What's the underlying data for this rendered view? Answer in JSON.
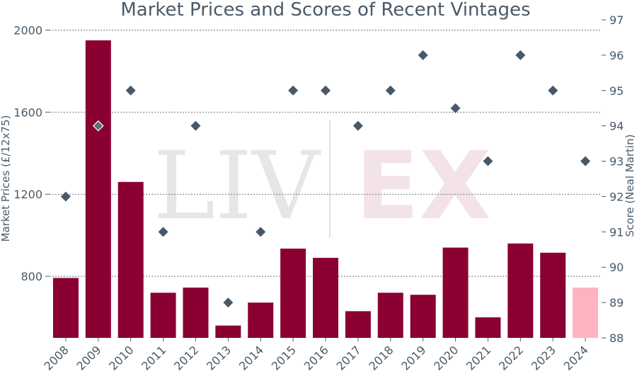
{
  "chart_data": {
    "type": "bar",
    "title": "Market Prices and Scores of Recent Vintages",
    "ylabel": "Market Prices (£/12x75)",
    "y2label": "Score (Neal Martin)",
    "ylim": [
      500,
      2050
    ],
    "y2lim": [
      88,
      97
    ],
    "yticks": [
      "800",
      "1200",
      "1600",
      "2000"
    ],
    "y2ticks": [
      "88",
      "89",
      "90",
      "91",
      "92",
      "93",
      "94",
      "95",
      "96",
      "97"
    ],
    "grid": true,
    "categories": [
      "2008",
      "2009",
      "2010",
      "2011",
      "2012",
      "2013",
      "2014",
      "2015",
      "2016",
      "2017",
      "2018",
      "2019",
      "2020",
      "2021",
      "2022",
      "2023",
      "2024"
    ],
    "series": [
      {
        "kind": "bar",
        "axis": "left",
        "values": [
          792,
          1950,
          1260,
          720,
          745,
          560,
          672,
          935,
          890,
          630,
          720,
          710,
          940,
          600,
          960,
          915,
          745
        ]
      },
      {
        "kind": "scatter",
        "axis": "right",
        "marker": "diamond",
        "values": [
          92,
          94,
          95,
          91,
          94,
          89,
          91,
          95,
          95,
          94,
          95,
          96,
          94.5,
          93,
          96,
          95,
          93
        ]
      }
    ],
    "colors": {
      "bar": "#8a0033",
      "bar_last": "#ffb3c1",
      "marker": "#4a5866",
      "marker_highlight": "#5e7068",
      "text": "#4a5a68",
      "grid": "#777777"
    },
    "watermark": {
      "left": "LIV",
      "right": "EX"
    }
  }
}
